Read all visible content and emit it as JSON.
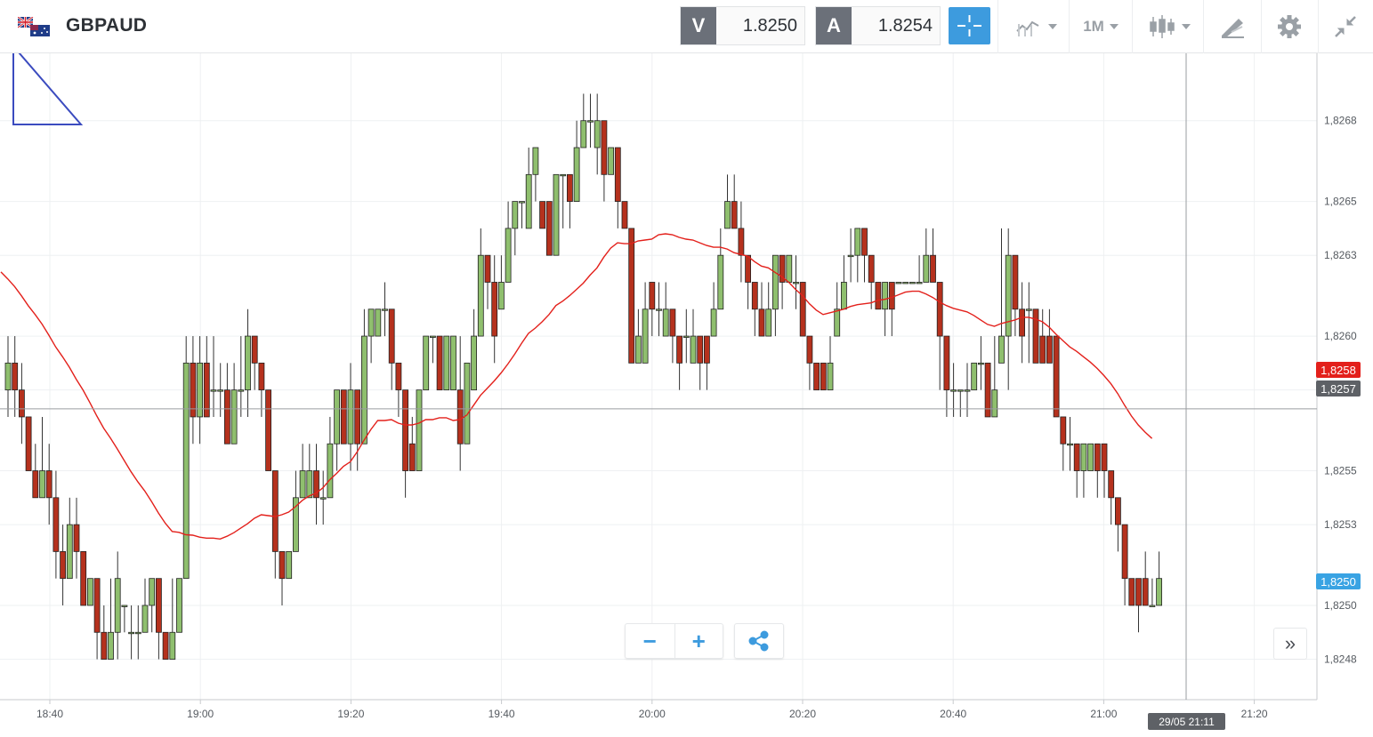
{
  "header": {
    "symbol": "GBPAUD",
    "flag_icon": "gb-au-flag-icon",
    "sell": {
      "label": "V",
      "value": "1.8250"
    },
    "buy": {
      "label": "A",
      "value": "1.8254"
    },
    "timeframe": "1M",
    "tools": [
      "crosshair-icon",
      "chart-type-icon",
      "timeframe-select",
      "candlestick-icon",
      "drawing-tools-icon",
      "gear-icon",
      "collapse-icon"
    ]
  },
  "chart": {
    "y_labels": [
      "1,8268",
      "1,8265",
      "1,8263",
      "1,8260",
      "1,8258",
      "1,8255",
      "1,8253",
      "1,8250",
      "1,8248"
    ],
    "x_labels": [
      "18:40",
      "19:00",
      "19:20",
      "19:40",
      "20:00",
      "20:20",
      "20:40",
      "21:00",
      "21:20"
    ],
    "ma_badge": "1,8258",
    "crosshair_price": "1,8257",
    "bid_badge": "1,8250",
    "crosshair_time": "29/05 21:11",
    "colors": {
      "up": "#8fbf6e",
      "down": "#b5311d",
      "ma": "#e3201b",
      "accent": "#3d9bde"
    }
  },
  "controls": {
    "zoom_out": "−",
    "zoom_in": "+",
    "share_icon": "share-icon",
    "scroll_right": "»"
  },
  "chart_data": {
    "type": "candlestick",
    "x_labels": [
      "18:40",
      "19:00",
      "19:20",
      "19:40",
      "20:00",
      "20:20",
      "20:40",
      "21:00",
      "21:20"
    ],
    "y_ticks": [
      1.8268,
      1.8265,
      1.8263,
      1.826,
      1.8258,
      1.8255,
      1.8253,
      1.825,
      1.8248
    ],
    "ylim": [
      1.82465,
      1.82705
    ],
    "interval": "1M",
    "grid": true,
    "candles": [
      [
        1.8258,
        1.8259,
        1.826,
        1.8257
      ],
      [
        1.8259,
        1.8258,
        1.826,
        1.8257
      ],
      [
        1.8258,
        1.8257,
        1.8259,
        1.8256
      ],
      [
        1.8257,
        1.8255,
        1.8257,
        1.8255
      ],
      [
        1.8255,
        1.8254,
        1.8256,
        1.8254
      ],
      [
        1.8254,
        1.8255,
        1.8257,
        1.8254
      ],
      [
        1.8255,
        1.8254,
        1.8256,
        1.8253
      ],
      [
        1.8254,
        1.8252,
        1.8255,
        1.8251
      ],
      [
        1.8252,
        1.8251,
        1.8253,
        1.825
      ],
      [
        1.8251,
        1.8253,
        1.8254,
        1.8251
      ],
      [
        1.8253,
        1.8252,
        1.8254,
        1.8251
      ],
      [
        1.8252,
        1.825,
        1.8252,
        1.825
      ],
      [
        1.825,
        1.8251,
        1.8251,
        1.825
      ],
      [
        1.8251,
        1.8249,
        1.8251,
        1.8248
      ],
      [
        1.8249,
        1.8248,
        1.825,
        1.8248
      ],
      [
        1.8248,
        1.8249,
        1.8251,
        1.8248
      ],
      [
        1.8249,
        1.8251,
        1.8252,
        1.8248
      ],
      [
        1.825,
        1.825,
        1.825,
        1.8249
      ],
      [
        1.8249,
        1.8249,
        1.825,
        1.8248
      ],
      [
        1.8249,
        1.8249,
        1.825,
        1.8248
      ],
      [
        1.8249,
        1.825,
        1.8251,
        1.8249
      ],
      [
        1.825,
        1.8251,
        1.8251,
        1.8249
      ],
      [
        1.8251,
        1.8249,
        1.8251,
        1.8248
      ],
      [
        1.8249,
        1.8248,
        1.8249,
        1.8248
      ],
      [
        1.8248,
        1.8249,
        1.8251,
        1.8248
      ],
      [
        1.8249,
        1.8251,
        1.8251,
        1.8249
      ],
      [
        1.8251,
        1.8259,
        1.826,
        1.8251
      ],
      [
        1.8259,
        1.8257,
        1.826,
        1.8256
      ],
      [
        1.8257,
        1.8259,
        1.826,
        1.8256
      ],
      [
        1.8259,
        1.8257,
        1.826,
        1.8257
      ],
      [
        1.8258,
        1.8258,
        1.826,
        1.8257
      ],
      [
        1.8258,
        1.8258,
        1.8259,
        1.8257
      ],
      [
        1.8258,
        1.8256,
        1.8259,
        1.8256
      ],
      [
        1.8256,
        1.8258,
        1.8259,
        1.8256
      ],
      [
        1.8258,
        1.8258,
        1.826,
        1.8257
      ],
      [
        1.8258,
        1.826,
        1.8261,
        1.8257
      ],
      [
        1.826,
        1.8259,
        1.826,
        1.8258
      ],
      [
        1.8259,
        1.8258,
        1.8259,
        1.8257
      ],
      [
        1.8258,
        1.8255,
        1.8258,
        1.8255
      ],
      [
        1.8255,
        1.8252,
        1.8255,
        1.8251
      ],
      [
        1.8252,
        1.8251,
        1.8252,
        1.825
      ],
      [
        1.8251,
        1.8252,
        1.8252,
        1.8251
      ],
      [
        1.8252,
        1.8254,
        1.8255,
        1.8252
      ],
      [
        1.8254,
        1.8255,
        1.8256,
        1.8254
      ],
      [
        1.8254,
        1.8255,
        1.8256,
        1.8254
      ],
      [
        1.8255,
        1.8254,
        1.8256,
        1.8253
      ],
      [
        1.8254,
        1.8254,
        1.8255,
        1.8253
      ],
      [
        1.8254,
        1.8256,
        1.8257,
        1.8254
      ],
      [
        1.8256,
        1.8258,
        1.8258,
        1.8255
      ],
      [
        1.8258,
        1.8256,
        1.8258,
        1.8256
      ],
      [
        1.8256,
        1.8258,
        1.8259,
        1.8255
      ],
      [
        1.8258,
        1.8256,
        1.8258,
        1.8255
      ],
      [
        1.8256,
        1.826,
        1.8261,
        1.8256
      ],
      [
        1.826,
        1.8261,
        1.8261,
        1.8259
      ],
      [
        1.826,
        1.8261,
        1.8261,
        1.826
      ],
      [
        1.8261,
        1.8261,
        1.8262,
        1.826
      ],
      [
        1.8261,
        1.8259,
        1.8261,
        1.8258
      ],
      [
        1.8259,
        1.8258,
        1.8259,
        1.8257
      ],
      [
        1.8258,
        1.8255,
        1.8258,
        1.8254
      ],
      [
        1.8256,
        1.8255,
        1.8257,
        1.8255
      ],
      [
        1.8255,
        1.8258,
        1.8258,
        1.8255
      ],
      [
        1.8258,
        1.826,
        1.826,
        1.8258
      ],
      [
        1.826,
        1.826,
        1.826,
        1.8259
      ],
      [
        1.826,
        1.8258,
        1.826,
        1.8258
      ],
      [
        1.8258,
        1.826,
        1.826,
        1.8258
      ],
      [
        1.8258,
        1.826,
        1.826,
        1.8258
      ],
      [
        1.8258,
        1.8256,
        1.826,
        1.8255
      ],
      [
        1.8256,
        1.8259,
        1.8259,
        1.8256
      ],
      [
        1.8258,
        1.826,
        1.8261,
        1.8258
      ],
      [
        1.826,
        1.8263,
        1.8264,
        1.826
      ],
      [
        1.8263,
        1.8262,
        1.8263,
        1.8261
      ],
      [
        1.8262,
        1.826,
        1.8263,
        1.8259
      ],
      [
        1.8261,
        1.8262,
        1.8263,
        1.8261
      ],
      [
        1.8262,
        1.8264,
        1.8265,
        1.8262
      ],
      [
        1.8264,
        1.8265,
        1.8265,
        1.8263
      ],
      [
        1.8265,
        1.8265,
        1.8265,
        1.8264
      ],
      [
        1.8264,
        1.8266,
        1.8267,
        1.8264
      ],
      [
        1.8266,
        1.8267,
        1.8267,
        1.8265
      ],
      [
        1.8265,
        1.8264,
        1.8265,
        1.8264
      ],
      [
        1.8265,
        1.8263,
        1.8265,
        1.8263
      ],
      [
        1.8263,
        1.8266,
        1.8266,
        1.8263
      ],
      [
        1.8266,
        1.8266,
        1.8266,
        1.8264
      ],
      [
        1.8266,
        1.8265,
        1.8266,
        1.8264
      ],
      [
        1.8265,
        1.8267,
        1.8268,
        1.8265
      ],
      [
        1.8267,
        1.8268,
        1.8269,
        1.8267
      ],
      [
        1.8268,
        1.8268,
        1.8269,
        1.8267
      ],
      [
        1.8267,
        1.8268,
        1.8269,
        1.8266
      ],
      [
        1.8268,
        1.8266,
        1.8268,
        1.8265
      ],
      [
        1.8266,
        1.8267,
        1.8267,
        1.8266
      ],
      [
        1.8267,
        1.8265,
        1.8267,
        1.8264
      ],
      [
        1.8265,
        1.8264,
        1.8265,
        1.8264
      ],
      [
        1.8264,
        1.8259,
        1.8264,
        1.8259
      ],
      [
        1.8259,
        1.826,
        1.8261,
        1.8259
      ],
      [
        1.8259,
        1.8261,
        1.8262,
        1.8259
      ],
      [
        1.8262,
        1.8261,
        1.8262,
        1.826
      ],
      [
        1.8261,
        1.8261,
        1.8262,
        1.826
      ],
      [
        1.826,
        1.8261,
        1.8262,
        1.826
      ],
      [
        1.8261,
        1.826,
        1.8261,
        1.8259
      ],
      [
        1.826,
        1.8259,
        1.826,
        1.8258
      ],
      [
        1.826,
        1.826,
        1.8261,
        1.8259
      ],
      [
        1.8259,
        1.826,
        1.8261,
        1.8259
      ],
      [
        1.826,
        1.8259,
        1.826,
        1.8258
      ],
      [
        1.826,
        1.8259,
        1.826,
        1.8258
      ],
      [
        1.826,
        1.8261,
        1.8262,
        1.826
      ],
      [
        1.8261,
        1.8263,
        1.8264,
        1.8261
      ],
      [
        1.8264,
        1.8265,
        1.8266,
        1.8264
      ],
      [
        1.8265,
        1.8264,
        1.8266,
        1.8264
      ],
      [
        1.8264,
        1.8263,
        1.8265,
        1.8262
      ],
      [
        1.8263,
        1.8262,
        1.8263,
        1.8261
      ],
      [
        1.8262,
        1.8261,
        1.8262,
        1.826
      ],
      [
        1.8261,
        1.826,
        1.8262,
        1.826
      ],
      [
        1.826,
        1.8261,
        1.8262,
        1.826
      ],
      [
        1.8261,
        1.8263,
        1.8263,
        1.826
      ],
      [
        1.8263,
        1.8262,
        1.8263,
        1.8261
      ],
      [
        1.8262,
        1.8263,
        1.8263,
        1.8262
      ],
      [
        1.8262,
        1.8262,
        1.8263,
        1.8261
      ],
      [
        1.8262,
        1.826,
        1.8262,
        1.826
      ],
      [
        1.826,
        1.8259,
        1.826,
        1.8258
      ],
      [
        1.8259,
        1.8258,
        1.8259,
        1.8258
      ],
      [
        1.8259,
        1.8258,
        1.8259,
        1.8258
      ],
      [
        1.8258,
        1.8259,
        1.826,
        1.8258
      ],
      [
        1.826,
        1.8261,
        1.8262,
        1.826
      ],
      [
        1.8261,
        1.8262,
        1.8263,
        1.8261
      ],
      [
        1.8263,
        1.8263,
        1.8264,
        1.8262
      ],
      [
        1.8263,
        1.8264,
        1.8264,
        1.8262
      ],
      [
        1.8264,
        1.8263,
        1.8264,
        1.8262
      ],
      [
        1.8263,
        1.8262,
        1.8263,
        1.8261
      ],
      [
        1.8262,
        1.8261,
        1.8262,
        1.8261
      ],
      [
        1.8261,
        1.8262,
        1.8262,
        1.826
      ],
      [
        1.8262,
        1.8261,
        1.8262,
        1.826
      ],
      [
        1.8262,
        1.8262,
        1.8262,
        1.8262
      ],
      [
        1.8262,
        1.8262,
        1.8262,
        1.8262
      ],
      [
        1.8262,
        1.8262,
        1.8262,
        1.8262
      ],
      [
        1.8262,
        1.8262,
        1.8263,
        1.8262
      ],
      [
        1.8262,
        1.8263,
        1.8264,
        1.8262
      ],
      [
        1.8263,
        1.8262,
        1.8264,
        1.8262
      ],
      [
        1.8262,
        1.826,
        1.8262,
        1.8258
      ],
      [
        1.826,
        1.8258,
        1.826,
        1.8257
      ],
      [
        1.8258,
        1.8258,
        1.8259,
        1.8257
      ],
      [
        1.8258,
        1.8258,
        1.8258,
        1.8257
      ],
      [
        1.8258,
        1.8258,
        1.8259,
        1.8257
      ],
      [
        1.8258,
        1.8259,
        1.8259,
        1.8258
      ],
      [
        1.8259,
        1.8259,
        1.826,
        1.8258
      ],
      [
        1.8259,
        1.8257,
        1.8259,
        1.8257
      ],
      [
        1.8257,
        1.8258,
        1.826,
        1.8257
      ],
      [
        1.8259,
        1.826,
        1.8264,
        1.8259
      ],
      [
        1.826,
        1.8263,
        1.8264,
        1.8258
      ],
      [
        1.8263,
        1.8261,
        1.8263,
        1.826
      ],
      [
        1.8261,
        1.826,
        1.8262,
        1.8259
      ],
      [
        1.8261,
        1.8261,
        1.8262,
        1.8259
      ],
      [
        1.8261,
        1.8259,
        1.8261,
        1.8259
      ],
      [
        1.826,
        1.8259,
        1.8261,
        1.8259
      ],
      [
        1.826,
        1.8259,
        1.8261,
        1.8259
      ],
      [
        1.826,
        1.8257,
        1.826,
        1.8257
      ],
      [
        1.8257,
        1.8256,
        1.8257,
        1.8255
      ],
      [
        1.8256,
        1.8256,
        1.8257,
        1.8255
      ],
      [
        1.8256,
        1.8255,
        1.8256,
        1.8254
      ],
      [
        1.8255,
        1.8256,
        1.8256,
        1.8254
      ],
      [
        1.8255,
        1.8256,
        1.8256,
        1.8255
      ],
      [
        1.8256,
        1.8255,
        1.8256,
        1.8254
      ],
      [
        1.8256,
        1.8255,
        1.8256,
        1.8254
      ],
      [
        1.8255,
        1.8254,
        1.8255,
        1.8253
      ],
      [
        1.8254,
        1.8253,
        1.8254,
        1.8252
      ],
      [
        1.8253,
        1.8251,
        1.8253,
        1.825
      ],
      [
        1.8251,
        1.825,
        1.8251,
        1.825
      ],
      [
        1.8251,
        1.825,
        1.8251,
        1.8249
      ],
      [
        1.8251,
        1.825,
        1.8252,
        1.825
      ],
      [
        1.825,
        1.825,
        1.8251,
        1.825
      ],
      [
        1.825,
        1.8251,
        1.8252,
        1.825
      ]
    ],
    "series": [
      {
        "type": "moving-average",
        "color": "#e3201b"
      }
    ]
  }
}
